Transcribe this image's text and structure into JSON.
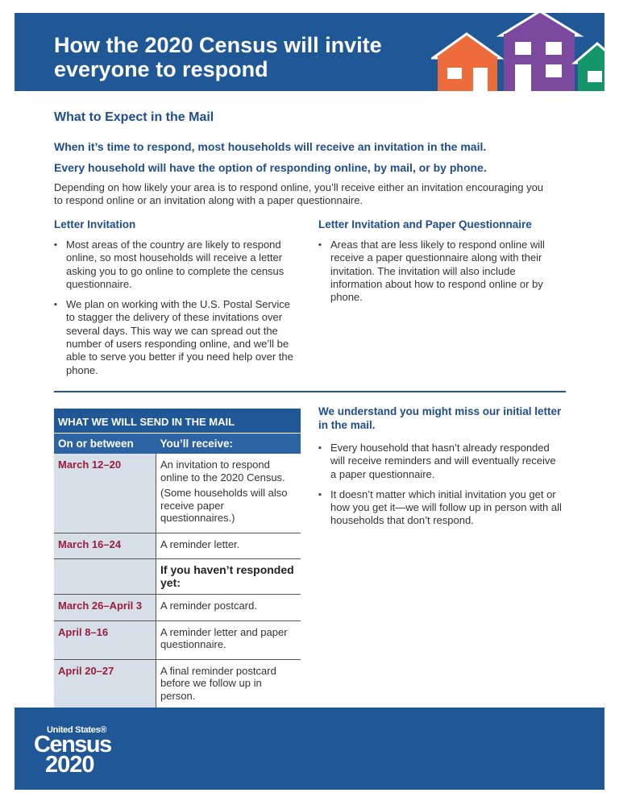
{
  "header": {
    "title": [
      "How the 2020 Census will invite",
      "everyone to respond"
    ]
  },
  "section_heading": "What to Expect in the Mail",
  "lead": [
    "When it’s time to respond, most households will receive an invitation in the mail.",
    "Every household will have the option of responding online, by mail, or by phone."
  ],
  "intro": "Depending on how likely your area is to respond online, you’ll receive either an invitation encouraging you to respond online or an invitation along with a paper questionnaire.",
  "columns": [
    {
      "heading": "Letter Invitation",
      "bullets": [
        "Most areas of the country are likely to respond online, so most households will receive a letter asking you to go online to complete the census questionnaire.",
        "We plan on working with the U.S. Postal Service to stagger the delivery of these invitations over several days. This way we can spread out the number of users responding online, and we’ll be able to serve you better if you need help over the phone."
      ]
    },
    {
      "heading": "Letter Invitation and Paper Questionnaire",
      "bullets": [
        "Areas that are less likely to respond online will receive a paper questionnaire along with their invitation. The invitation will also include information about how to respond online or by phone."
      ]
    }
  ],
  "table": {
    "title": "WHAT WE WILL SEND IN THE MAIL",
    "header": [
      "On or between",
      "You’ll receive:"
    ],
    "rows": [
      {
        "date": "March 12–20",
        "text": [
          "An invitation to respond online to the 2020 Census.",
          "(Some households will also receive paper questionnaires.)"
        ]
      },
      {
        "date": "March 16–24",
        "text": [
          "A reminder letter."
        ]
      },
      {
        "subheading": "If you haven’t responded yet:"
      },
      {
        "date": "March 26–April 3",
        "text": [
          "A reminder postcard."
        ]
      },
      {
        "date": "April 8–16",
        "text": [
          "A reminder letter and paper questionnaire."
        ]
      },
      {
        "date": "April 20–27",
        "text": [
          "A final reminder postcard before we follow up in person."
        ]
      }
    ]
  },
  "sidebar": {
    "heading": "We understand you might miss our initial letter in the mail.",
    "bullets": [
      "Every household that hasn’t already responded will receive reminders and will eventually receive a paper questionnaire.",
      "It doesn’t matter which initial invitation you get or how you get it—we will follow up in person with all households that don’t respond."
    ]
  },
  "footer": {
    "logo": [
      "United States®",
      "Census",
      "2020"
    ]
  }
}
